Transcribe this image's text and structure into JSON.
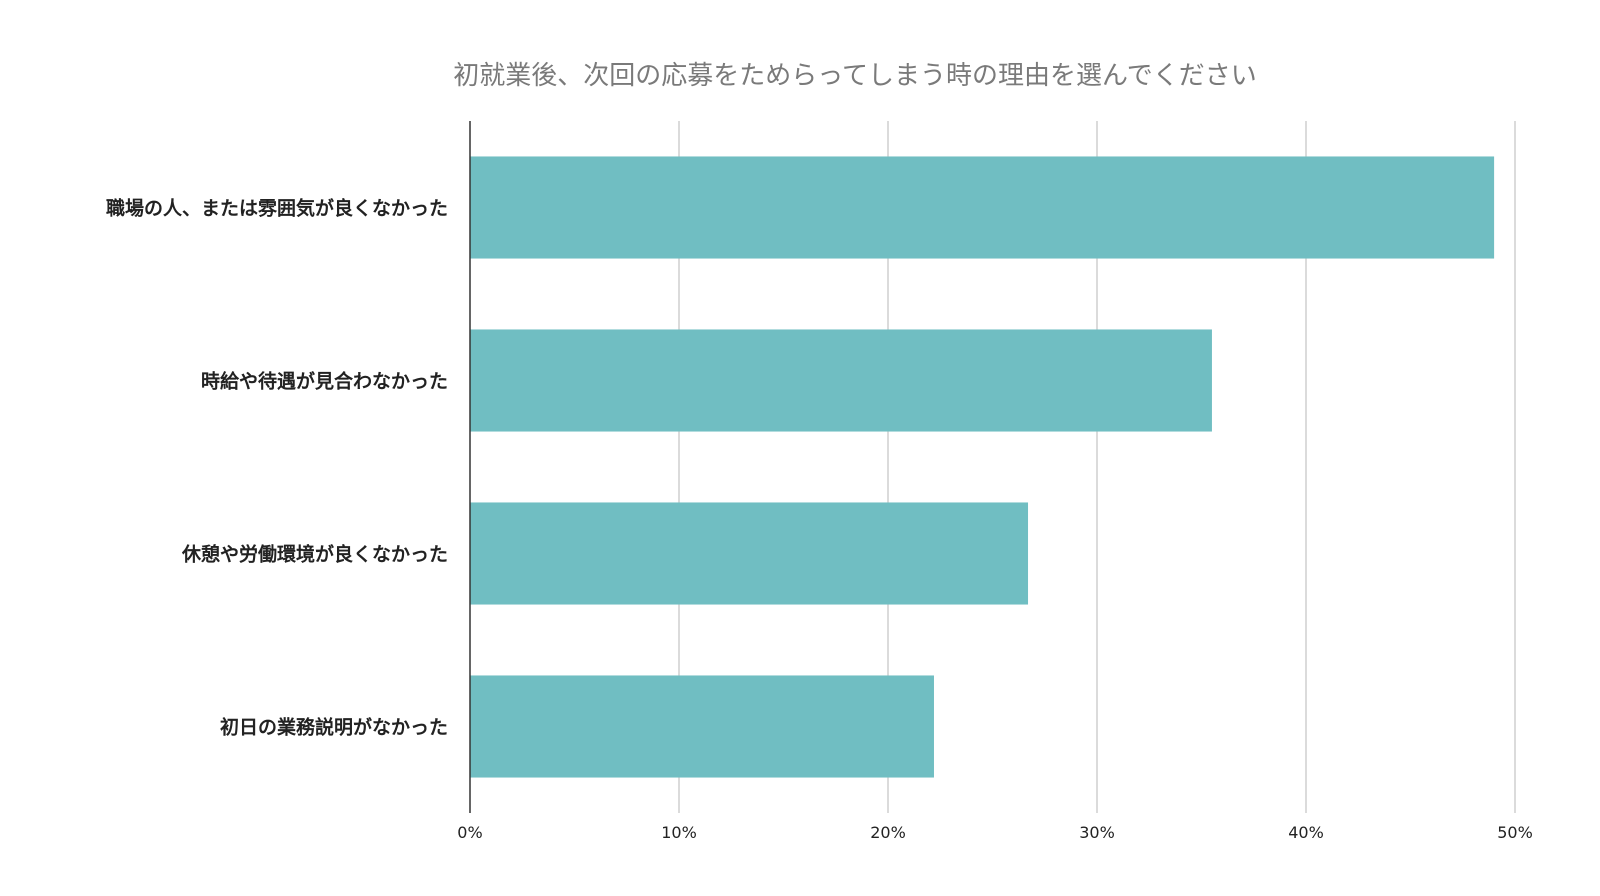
{
  "chart_data": {
    "type": "bar",
    "orientation": "horizontal",
    "title": "初就業後、次回の応募をためらってしまう時の理由を選んでください",
    "xlabel": "",
    "ylabel": "",
    "categories": [
      "職場の人、または雰囲気が良くなかった",
      "時給や待遇が見合わなかった",
      "休憩や労働環境が良くなかった",
      "初日の業務説明がなかった"
    ],
    "values": [
      49,
      35.5,
      26.7,
      22.2
    ],
    "value_format": "percent",
    "xlim": [
      0,
      50
    ],
    "ticks": [
      0,
      10,
      20,
      30,
      40,
      50
    ],
    "tick_labels": [
      "0%",
      "10%",
      "20%",
      "30%",
      "40%",
      "50%"
    ],
    "grid": true,
    "legend": "none",
    "bar_color": "#70bec2"
  }
}
